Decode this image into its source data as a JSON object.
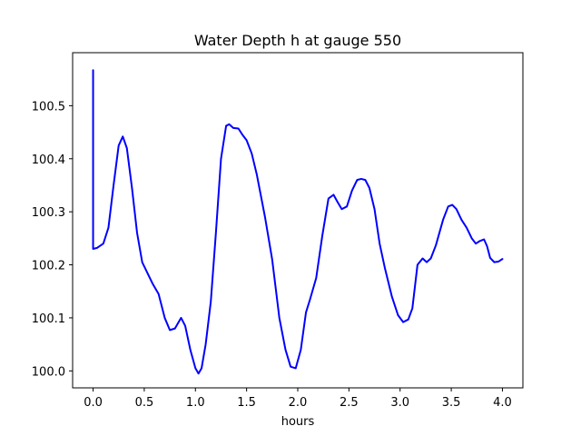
{
  "chart_data": {
    "type": "line",
    "title": "Water Depth h at gauge 550",
    "xlabel": "hours",
    "ylabel": "",
    "xlim": [
      -0.2,
      4.2
    ],
    "ylim": [
      99.968,
      100.6
    ],
    "grid": false,
    "x_ticks": [
      0.0,
      0.5,
      1.0,
      1.5,
      2.0,
      2.5,
      3.0,
      3.5,
      4.0
    ],
    "x_tick_labels": [
      "0.0",
      "0.5",
      "1.0",
      "1.5",
      "2.0",
      "2.5",
      "3.0",
      "3.5",
      "4.0"
    ],
    "y_ticks": [
      100.0,
      100.1,
      100.2,
      100.3,
      100.4,
      100.5
    ],
    "y_tick_labels": [
      "100.0",
      "100.1",
      "100.2",
      "100.3",
      "100.4",
      "100.5"
    ],
    "series": [
      {
        "color": "#0000ff",
        "x": [
          0.0,
          0.0,
          0.0,
          0.04,
          0.1,
          0.15,
          0.2,
          0.25,
          0.29,
          0.33,
          0.38,
          0.43,
          0.48,
          0.53,
          0.58,
          0.64,
          0.7,
          0.75,
          0.8,
          0.86,
          0.9,
          0.95,
          1.0,
          1.03,
          1.06,
          1.1,
          1.15,
          1.2,
          1.25,
          1.3,
          1.33,
          1.37,
          1.42,
          1.46,
          1.5,
          1.55,
          1.6,
          1.68,
          1.75,
          1.82,
          1.88,
          1.93,
          1.98,
          2.03,
          2.08,
          2.12,
          2.18,
          2.24,
          2.3,
          2.35,
          2.39,
          2.43,
          2.48,
          2.53,
          2.58,
          2.62,
          2.66,
          2.7,
          2.75,
          2.8,
          2.85,
          2.92,
          2.98,
          3.03,
          3.08,
          3.12,
          3.17,
          3.22,
          3.26,
          3.3,
          3.35,
          3.42,
          3.47,
          3.51,
          3.55,
          3.6,
          3.65,
          3.7,
          3.74,
          3.78,
          3.82,
          3.85,
          3.88,
          3.92,
          3.96,
          4.0
        ],
        "y": [
          100.567,
          100.23,
          100.23,
          100.232,
          100.24,
          100.27,
          100.35,
          100.425,
          100.442,
          100.42,
          100.345,
          100.26,
          100.205,
          100.185,
          100.165,
          100.145,
          100.1,
          100.077,
          100.08,
          100.1,
          100.085,
          100.04,
          100.005,
          99.995,
          100.005,
          100.05,
          100.13,
          100.26,
          100.4,
          100.462,
          100.465,
          100.458,
          100.457,
          100.445,
          100.435,
          100.41,
          100.37,
          100.29,
          100.21,
          100.1,
          100.04,
          100.008,
          100.005,
          100.04,
          100.11,
          100.135,
          100.175,
          100.255,
          100.325,
          100.332,
          100.318,
          100.305,
          100.31,
          100.34,
          100.36,
          100.362,
          100.36,
          100.345,
          100.305,
          100.24,
          100.195,
          100.14,
          100.105,
          100.092,
          100.097,
          100.118,
          100.2,
          100.212,
          100.205,
          100.212,
          100.237,
          100.285,
          100.31,
          100.313,
          100.305,
          100.285,
          100.27,
          100.25,
          100.24,
          100.245,
          100.248,
          100.235,
          100.213,
          100.205,
          100.206,
          100.211
        ]
      }
    ]
  }
}
